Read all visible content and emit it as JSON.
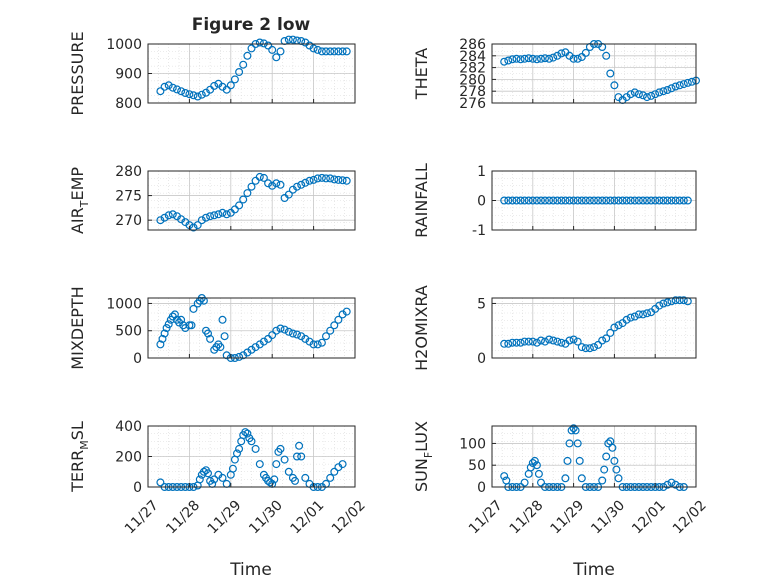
{
  "figure_title": "Figure 2 low",
  "x_label": "Time",
  "x_ticks": [
    "11/27",
    "11/28",
    "11/29",
    "11/30",
    "12/01",
    "12/02"
  ],
  "colors": {
    "marker": "#0072bd",
    "axis": "#262626",
    "grid": "#d9d9d9",
    "background": "#ffffff"
  },
  "chart_data": [
    {
      "type": "scatter",
      "ylabel": {
        "base": "PRESSURE",
        "sub": ""
      },
      "ylim": [
        800,
        1000
      ],
      "yticks": [
        "800",
        "900",
        "1000"
      ],
      "xlim": [
        0,
        5
      ],
      "x": [
        0.3,
        0.4,
        0.5,
        0.6,
        0.7,
        0.8,
        0.9,
        1.0,
        1.1,
        1.2,
        1.3,
        1.4,
        1.5,
        1.6,
        1.7,
        1.8,
        1.9,
        2.0,
        2.1,
        2.2,
        2.3,
        2.4,
        2.5,
        2.6,
        2.7,
        2.8,
        2.9,
        3.0,
        3.1,
        3.2,
        3.3,
        3.4,
        3.5,
        3.6,
        3.7,
        3.8,
        3.9,
        4.0,
        4.1,
        4.2,
        4.3,
        4.4,
        4.5,
        4.6,
        4.7,
        4.8
      ],
      "y": [
        840,
        855,
        860,
        852,
        846,
        840,
        834,
        830,
        826,
        822,
        828,
        835,
        845,
        858,
        865,
        855,
        845,
        860,
        880,
        905,
        930,
        960,
        985,
        1000,
        1005,
        1002,
        995,
        980,
        955,
        975,
        1010,
        1015,
        1015,
        1012,
        1010,
        1005,
        995,
        985,
        980,
        975,
        975,
        975,
        975,
        975,
        975,
        975
      ]
    },
    {
      "type": "scatter",
      "ylabel": {
        "base": "THETA",
        "sub": ""
      },
      "ylim": [
        276,
        286
      ],
      "yticks": [
        "276",
        "278",
        "280",
        "282",
        "284",
        "286"
      ],
      "xlim": [
        0,
        5
      ],
      "x": [
        0.3,
        0.4,
        0.5,
        0.6,
        0.7,
        0.8,
        0.9,
        1.0,
        1.1,
        1.2,
        1.3,
        1.4,
        1.5,
        1.6,
        1.7,
        1.8,
        1.9,
        2.0,
        2.1,
        2.2,
        2.3,
        2.4,
        2.5,
        2.6,
        2.7,
        2.8,
        2.9,
        3.0,
        3.1,
        3.2,
        3.3,
        3.4,
        3.5,
        3.6,
        3.7,
        3.8,
        3.9,
        4.0,
        4.1,
        4.2,
        4.3,
        4.4,
        4.5,
        4.6,
        4.7,
        4.8,
        4.9,
        5.0
      ],
      "y": [
        283,
        283.2,
        283.4,
        283.5,
        283.4,
        283.5,
        283.6,
        283.5,
        283.4,
        283.5,
        283.6,
        283.5,
        283.7,
        284,
        284.4,
        284.6,
        284,
        283.5,
        283.5,
        283.8,
        284.5,
        285.5,
        286,
        286,
        285.5,
        284,
        281,
        279,
        277,
        276.5,
        277,
        277.5,
        277.8,
        277.5,
        277.3,
        277,
        277.2,
        277.5,
        277.8,
        278,
        278.2,
        278.5,
        278.8,
        279,
        279.2,
        279.4,
        279.6,
        279.8
      ]
    },
    {
      "type": "scatter",
      "ylabel": {
        "base": "AIR",
        "sub": "T",
        "rest": "EMP"
      },
      "ylim": [
        268,
        280
      ],
      "yticks": [
        "270",
        "275",
        "280"
      ],
      "xlim": [
        0,
        5
      ],
      "x": [
        0.3,
        0.4,
        0.5,
        0.6,
        0.7,
        0.8,
        0.9,
        1.0,
        1.1,
        1.2,
        1.3,
        1.4,
        1.5,
        1.6,
        1.7,
        1.8,
        1.9,
        2.0,
        2.1,
        2.2,
        2.3,
        2.4,
        2.5,
        2.6,
        2.7,
        2.8,
        2.9,
        3.0,
        3.1,
        3.2,
        3.3,
        3.4,
        3.5,
        3.6,
        3.7,
        3.8,
        3.9,
        4.0,
        4.1,
        4.2,
        4.3,
        4.4,
        4.5,
        4.6,
        4.7,
        4.8
      ],
      "y": [
        270,
        270.5,
        271,
        271.2,
        270.8,
        270.2,
        269.6,
        269,
        268.5,
        269,
        270,
        270.5,
        270.8,
        271,
        271.2,
        271.5,
        271.2,
        271.5,
        272.2,
        273,
        274.2,
        275.5,
        276.8,
        278,
        278.8,
        278.6,
        277.5,
        277,
        277.5,
        277.2,
        274.5,
        275.2,
        276.2,
        276.8,
        277.2,
        277.6,
        278,
        278.2,
        278.5,
        278.6,
        278.5,
        278.5,
        278.3,
        278.2,
        278.1,
        278
      ]
    },
    {
      "type": "scatter",
      "ylabel": {
        "base": "RAINFALL",
        "sub": ""
      },
      "ylim": [
        -1,
        1
      ],
      "yticks": [
        "-1",
        "0",
        "1"
      ],
      "xlim": [
        0,
        5
      ],
      "x": [
        0.3,
        0.4,
        0.5,
        0.6,
        0.7,
        0.8,
        0.9,
        1.0,
        1.1,
        1.2,
        1.3,
        1.4,
        1.5,
        1.6,
        1.7,
        1.8,
        1.9,
        2.0,
        2.1,
        2.2,
        2.3,
        2.4,
        2.5,
        2.6,
        2.7,
        2.8,
        2.9,
        3.0,
        3.1,
        3.2,
        3.3,
        3.4,
        3.5,
        3.6,
        3.7,
        3.8,
        3.9,
        4.0,
        4.1,
        4.2,
        4.3,
        4.4,
        4.5,
        4.6,
        4.7,
        4.8
      ],
      "y": [
        0,
        0,
        0,
        0,
        0,
        0,
        0,
        0,
        0,
        0,
        0,
        0,
        0,
        0,
        0,
        0,
        0,
        0,
        0,
        0,
        0,
        0,
        0,
        0,
        0,
        0,
        0,
        0,
        0,
        0,
        0,
        0,
        0,
        0,
        0,
        0,
        0,
        0,
        0,
        0,
        0,
        0,
        0,
        0,
        0,
        0
      ]
    },
    {
      "type": "scatter",
      "ylabel": {
        "base": "MIXDEPTH",
        "sub": ""
      },
      "ylim": [
        0,
        1100
      ],
      "yticks": [
        "0",
        "500",
        "1000"
      ],
      "xlim": [
        0,
        5
      ],
      "x": [
        0.3,
        0.35,
        0.4,
        0.45,
        0.5,
        0.55,
        0.6,
        0.65,
        0.7,
        0.75,
        0.8,
        0.85,
        0.9,
        1.0,
        1.05,
        1.1,
        1.2,
        1.25,
        1.3,
        1.35,
        1.4,
        1.45,
        1.5,
        1.6,
        1.65,
        1.7,
        1.75,
        1.8,
        1.85,
        1.9,
        2.0,
        2.1,
        2.2,
        2.3,
        2.4,
        2.5,
        2.6,
        2.7,
        2.8,
        2.9,
        3.0,
        3.1,
        3.2,
        3.3,
        3.4,
        3.5,
        3.6,
        3.7,
        3.8,
        3.9,
        4.0,
        4.1,
        4.2,
        4.3,
        4.4,
        4.5,
        4.6,
        4.7,
        4.8
      ],
      "y": [
        250,
        350,
        450,
        550,
        620,
        700,
        760,
        800,
        700,
        650,
        700,
        600,
        550,
        600,
        600,
        900,
        1000,
        1050,
        1100,
        1050,
        500,
        450,
        350,
        150,
        200,
        250,
        200,
        700,
        400,
        50,
        0,
        0,
        20,
        50,
        100,
        150,
        200,
        250,
        300,
        350,
        420,
        500,
        540,
        520,
        480,
        450,
        430,
        400,
        350,
        300,
        250,
        250,
        280,
        400,
        500,
        600,
        700,
        800,
        850
      ]
    },
    {
      "type": "scatter",
      "ylabel": {
        "base": "H2OMIXRA",
        "sub": ""
      },
      "ylim": [
        0,
        5.5
      ],
      "yticks": [
        "0",
        "5"
      ],
      "xlim": [
        0,
        5
      ],
      "x": [
        0.3,
        0.4,
        0.5,
        0.6,
        0.7,
        0.8,
        0.9,
        1.0,
        1.1,
        1.2,
        1.3,
        1.4,
        1.5,
        1.6,
        1.7,
        1.8,
        1.9,
        2.0,
        2.1,
        2.2,
        2.3,
        2.4,
        2.5,
        2.6,
        2.7,
        2.8,
        2.9,
        3.0,
        3.1,
        3.2,
        3.3,
        3.4,
        3.5,
        3.6,
        3.7,
        3.8,
        3.9,
        4.0,
        4.1,
        4.2,
        4.3,
        4.4,
        4.5,
        4.6,
        4.7,
        4.8
      ],
      "y": [
        1.3,
        1.3,
        1.4,
        1.4,
        1.4,
        1.5,
        1.5,
        1.5,
        1.4,
        1.6,
        1.5,
        1.7,
        1.6,
        1.5,
        1.4,
        1.3,
        1.6,
        1.7,
        1.5,
        1.0,
        0.9,
        0.9,
        1.0,
        1.2,
        1.6,
        1.8,
        2.3,
        2.8,
        3.0,
        3.2,
        3.5,
        3.7,
        3.8,
        4.0,
        4.0,
        4.1,
        4.2,
        4.5,
        4.8,
        5.0,
        5.1,
        5.2,
        5.3,
        5.3,
        5.3,
        5.2
      ]
    },
    {
      "type": "scatter",
      "ylabel": {
        "base": "TERR",
        "sub": "M",
        "rest": "SL"
      },
      "ylim": [
        0,
        400
      ],
      "yticks": [
        "0",
        "200",
        "400"
      ],
      "xlim": [
        0,
        5
      ],
      "x": [
        0.3,
        0.4,
        0.5,
        0.6,
        0.7,
        0.8,
        0.9,
        1.0,
        1.1,
        1.2,
        1.25,
        1.3,
        1.35,
        1.4,
        1.45,
        1.5,
        1.55,
        1.6,
        1.7,
        1.8,
        1.9,
        2.0,
        2.05,
        2.1,
        2.15,
        2.2,
        2.25,
        2.3,
        2.35,
        2.4,
        2.45,
        2.5,
        2.6,
        2.7,
        2.8,
        2.85,
        2.9,
        2.95,
        3.0,
        3.05,
        3.1,
        3.15,
        3.2,
        3.3,
        3.4,
        3.5,
        3.55,
        3.6,
        3.65,
        3.7,
        3.8,
        3.9,
        4.0,
        4.1,
        4.2,
        4.3,
        4.4,
        4.5,
        4.6,
        4.7
      ],
      "y": [
        30,
        0,
        0,
        0,
        0,
        0,
        0,
        0,
        0,
        10,
        50,
        80,
        100,
        110,
        90,
        40,
        20,
        50,
        80,
        60,
        20,
        80,
        120,
        180,
        220,
        250,
        300,
        340,
        360,
        350,
        320,
        300,
        250,
        150,
        80,
        60,
        40,
        30,
        20,
        50,
        150,
        230,
        250,
        180,
        100,
        60,
        40,
        200,
        270,
        200,
        60,
        20,
        0,
        0,
        0,
        20,
        60,
        100,
        130,
        150
      ]
    },
    {
      "type": "scatter",
      "ylabel": {
        "base": "SUN",
        "sub": "F",
        "rest": "LUX"
      },
      "ylim": [
        0,
        140
      ],
      "yticks": [
        "0",
        "50",
        "100"
      ],
      "xlim": [
        0,
        5
      ],
      "x": [
        0.3,
        0.35,
        0.4,
        0.5,
        0.6,
        0.7,
        0.8,
        0.9,
        0.95,
        1.0,
        1.05,
        1.1,
        1.15,
        1.2,
        1.3,
        1.4,
        1.5,
        1.6,
        1.7,
        1.8,
        1.85,
        1.9,
        1.95,
        2.0,
        2.05,
        2.1,
        2.15,
        2.2,
        2.3,
        2.4,
        2.5,
        2.6,
        2.7,
        2.75,
        2.8,
        2.85,
        2.9,
        2.95,
        3.0,
        3.05,
        3.1,
        3.2,
        3.3,
        3.4,
        3.5,
        3.6,
        3.7,
        3.8,
        3.9,
        4.0,
        4.1,
        4.2,
        4.3,
        4.4,
        4.5,
        4.6,
        4.7
      ],
      "y": [
        25,
        15,
        0,
        0,
        0,
        0,
        10,
        30,
        45,
        55,
        60,
        50,
        30,
        10,
        0,
        0,
        0,
        0,
        0,
        20,
        60,
        100,
        130,
        135,
        130,
        100,
        60,
        20,
        0,
        0,
        0,
        0,
        15,
        40,
        70,
        100,
        105,
        90,
        60,
        40,
        20,
        0,
        0,
        0,
        0,
        0,
        0,
        0,
        0,
        0,
        0,
        0,
        5,
        10,
        5,
        0,
        0
      ]
    }
  ]
}
